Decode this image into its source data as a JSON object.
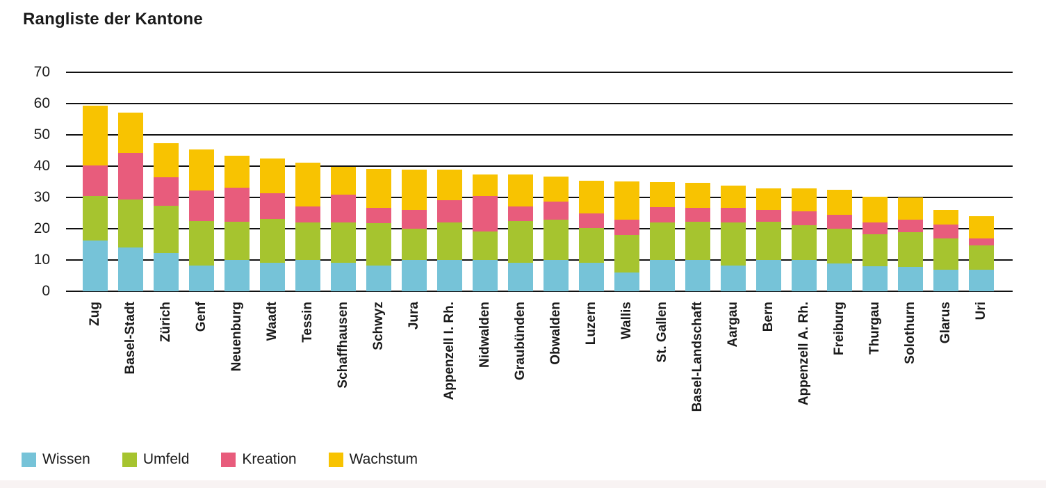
{
  "chart_data": {
    "type": "bar",
    "stacked": true,
    "title": "Rangliste der Kantone",
    "xlabel": "",
    "ylabel": "",
    "ylim": [
      0,
      70
    ],
    "y_ticks": [
      0,
      10,
      20,
      30,
      40,
      50,
      60,
      70
    ],
    "grid": "horizontal-black-lines",
    "legend_position": "bottom-left",
    "categories": [
      "Zug",
      "Basel-Stadt",
      "Zürich",
      "Genf",
      "Neuenburg",
      "Waadt",
      "Tessin",
      "Schaffhausen",
      "Schwyz",
      "Jura",
      "Appenzell I. Rh.",
      "Nidwalden",
      "Graubünden",
      "Obwalden",
      "Luzern",
      "Wallis",
      "St. Gallen",
      "Basel-Landschaft",
      "Aargau",
      "Bern",
      "Appenzell A. Rh.",
      "Freiburg",
      "Thurgau",
      "Solothurn",
      "Glarus",
      "Uri"
    ],
    "series": [
      {
        "name": "Wissen",
        "color": "#76C3D8",
        "values": [
          16.3,
          14.1,
          12.3,
          8.2,
          9.9,
          9.0,
          9.9,
          9.1,
          8.2,
          9.9,
          9.9,
          10.0,
          9.0,
          10.1,
          9.1,
          6.1,
          10.1,
          10.1,
          8.2,
          10.1,
          10.1,
          8.8,
          8.1,
          7.7,
          6.8,
          6.9
        ]
      },
      {
        "name": "Umfeld",
        "color": "#A6C42F",
        "values": [
          14.2,
          15.2,
          15.0,
          14.2,
          12.3,
          14.1,
          12.2,
          13.0,
          13.6,
          10.2,
          12.2,
          9.2,
          13.4,
          12.9,
          11.2,
          11.8,
          12.0,
          12.2,
          13.8,
          12.2,
          11.1,
          11.3,
          10.2,
          11.3,
          10.0,
          7.8
        ]
      },
      {
        "name": "Kreation",
        "color": "#E85C7C",
        "values": [
          9.7,
          15.0,
          9.1,
          9.9,
          10.9,
          8.2,
          5.0,
          8.9,
          4.9,
          6.0,
          7.0,
          11.2,
          4.7,
          5.7,
          4.7,
          4.9,
          4.9,
          4.3,
          4.7,
          3.8,
          4.4,
          4.4,
          3.8,
          3.8,
          4.6,
          2.3
        ]
      },
      {
        "name": "Wachstum",
        "color": "#F8C301",
        "values": [
          19.2,
          12.9,
          10.9,
          13.0,
          10.2,
          11.1,
          14.0,
          8.7,
          12.5,
          12.9,
          9.8,
          7.0,
          10.2,
          8.0,
          10.4,
          12.3,
          7.8,
          8.1,
          7.1,
          6.8,
          7.2,
          8.0,
          8.2,
          7.2,
          4.6,
          7.1
        ]
      }
    ],
    "totals": [
      59.4,
      57.2,
      47.3,
      45.3,
      43.3,
      42.4,
      41.1,
      39.7,
      39.2,
      39.0,
      38.9,
      37.4,
      37.3,
      36.7,
      35.4,
      35.1,
      34.8,
      34.7,
      33.8,
      32.9,
      32.8,
      32.5,
      30.3,
      30.0,
      26.0,
      24.1
    ]
  },
  "colors": {
    "grid": "#111111",
    "text": "#1a1a1a",
    "background": "#ffffff",
    "footer_strip": "#f8f3f3"
  }
}
